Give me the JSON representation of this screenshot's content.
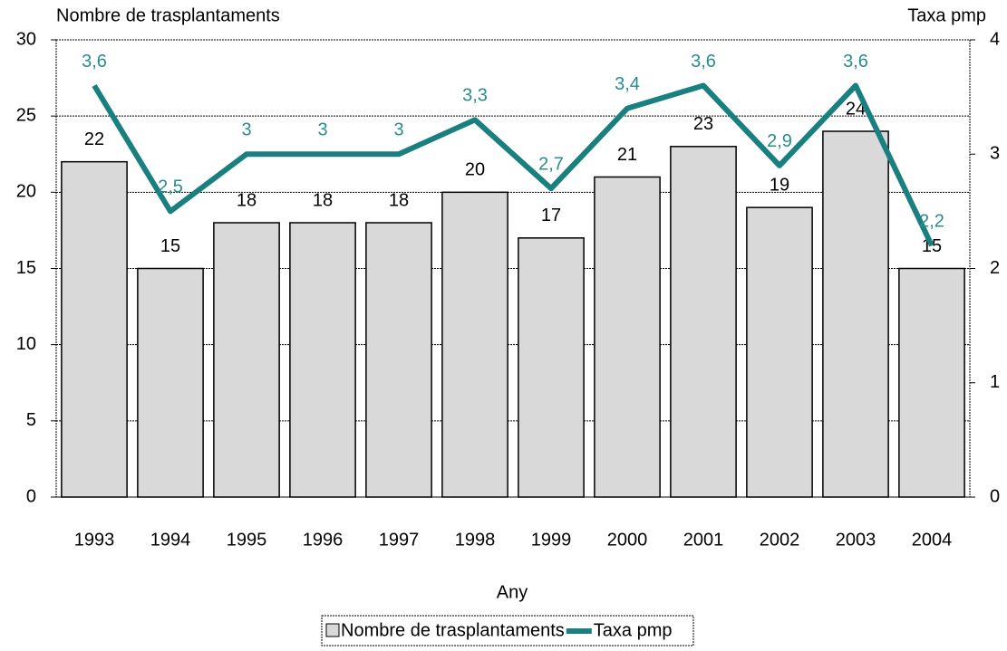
{
  "chart_data": {
    "type": "bar",
    "ylabel": "Nombre de trasplantaments",
    "y2label": "Taxa pmp",
    "xlabel": "Any",
    "categories": [
      "1993",
      "1994",
      "1995",
      "1996",
      "1997",
      "1998",
      "1999",
      "2000",
      "2001",
      "2002",
      "2003",
      "2004"
    ],
    "series": [
      {
        "name": "Nombre de trasplantaments",
        "type": "bar",
        "color": "#d9d9d9",
        "values": [
          22,
          15,
          18,
          18,
          18,
          20,
          17,
          21,
          23,
          19,
          24,
          15
        ]
      },
      {
        "name": "Taxa pmp",
        "type": "line",
        "axis": "y2",
        "color": "#1a7f7f",
        "values": [
          3.6,
          2.5,
          3,
          3,
          3,
          3.3,
          2.7,
          3.4,
          3.6,
          2.9,
          3.6,
          2.2
        ],
        "value_labels": [
          "3,6",
          "2,5",
          "3",
          "3",
          "3",
          "3,3",
          "2,7",
          "3,4",
          "3,6",
          "2,9",
          "3,6",
          "2,2"
        ]
      }
    ],
    "ylim": [
      0,
      30
    ],
    "yticks": [
      0,
      5,
      10,
      15,
      20,
      25,
      30
    ],
    "y2lim": [
      0,
      4
    ],
    "y2ticks": [
      0,
      1,
      2,
      3,
      4
    ],
    "grid": true,
    "legend": "bottom"
  }
}
